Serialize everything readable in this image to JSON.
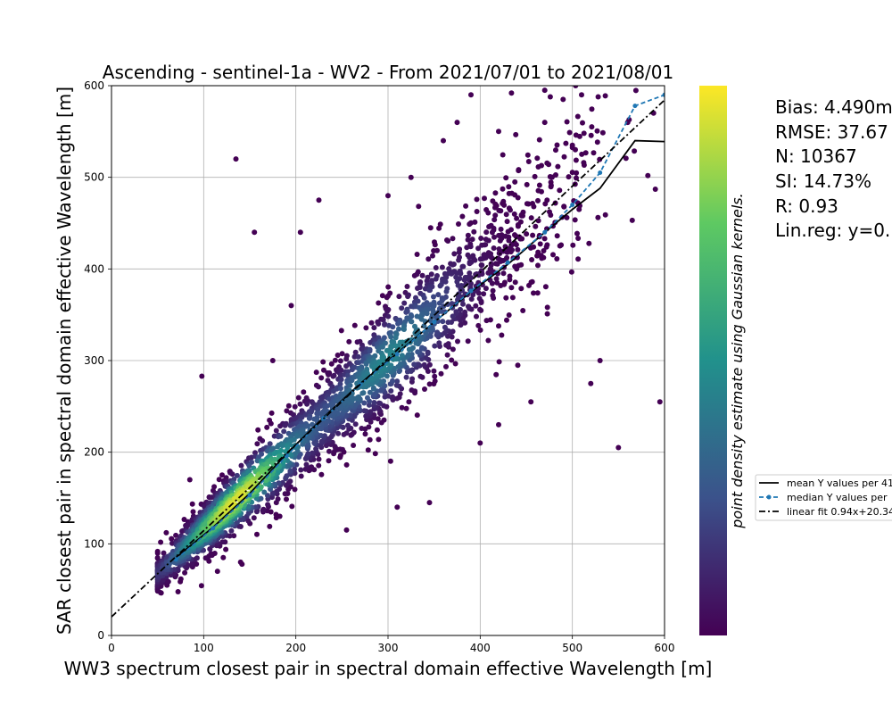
{
  "chart_data": {
    "type": "scatter",
    "title": "Ascending - sentinel-1a - WV2 - From 2021/07/01 to 2021/08/01",
    "xlabel": "WW3 spectrum closest pair in spectral domain effective Wavelength [m]",
    "ylabel": "SAR closest pair in spectral domain effective Wavelength [m]",
    "xlim": [
      0,
      600
    ],
    "ylim": [
      0,
      600
    ],
    "x_ticks": [
      "0",
      "100",
      "200",
      "300",
      "400",
      "500",
      "600"
    ],
    "y_ticks": [
      "0",
      "100",
      "200",
      "300",
      "400",
      "500",
      "600"
    ],
    "grid": true,
    "colorbar_label": "point density estimate using Gaussian kernels.",
    "colormap": [
      "#440154",
      "#3b528b",
      "#21918c",
      "#5ec962",
      "#fde725"
    ],
    "point_color_default": "#440154",
    "stats": {
      "bias": "Bias: 4.490m",
      "rmse": "RMSE: 37.67",
      "n": "N: 10367",
      "si": "SI: 14.73%",
      "r": "R: 0.93",
      "linreg": "Lin.reg: y=0."
    },
    "legend": {
      "position": "center-right",
      "entries": [
        {
          "label": "mean Y values per 41",
          "color": "#000000",
          "style": "solid"
        },
        {
          "label": "median Y values per",
          "color": "#1f77b4",
          "style": "dashed-marker"
        },
        {
          "label": "linear fit 0.94x+20.34",
          "color": "#000000",
          "style": "dashdot"
        }
      ]
    },
    "series": [
      {
        "name": "mean Y values per 41",
        "x": [
          70,
          110,
          150,
          190,
          230,
          270,
          310,
          350,
          390,
          430,
          470,
          500,
          530,
          568,
          600
        ],
        "y": [
          85,
          118,
          155,
          198,
          238,
          275,
          308,
          342,
          375,
          405,
          440,
          465,
          488,
          540,
          539
        ]
      },
      {
        "name": "median Y values per",
        "x": [
          70,
          110,
          150,
          190,
          230,
          270,
          310,
          350,
          390,
          430,
          470,
          500,
          530,
          568,
          600
        ],
        "y": [
          83,
          117,
          153,
          196,
          237,
          274,
          307,
          342,
          376,
          407,
          440,
          470,
          505,
          578,
          590
        ]
      },
      {
        "name": "linear fit 0.94x+20.34",
        "x": [
          0,
          600
        ],
        "y": [
          20.34,
          584.34
        ]
      }
    ],
    "scatter_seed": 12345,
    "scatter_count": 2600,
    "outliers": [
      [
        135,
        520
      ],
      [
        155,
        440
      ],
      [
        205,
        440
      ],
      [
        98,
        283
      ],
      [
        85,
        170
      ],
      [
        120,
        175
      ],
      [
        345,
        145
      ],
      [
        310,
        140
      ],
      [
        255,
        115
      ],
      [
        595,
        255
      ],
      [
        520,
        275
      ],
      [
        550,
        205
      ],
      [
        565,
        453
      ],
      [
        590,
        487
      ],
      [
        605,
        595
      ],
      [
        510,
        590
      ],
      [
        140,
        80
      ],
      [
        115,
        70
      ],
      [
        470,
        595
      ],
      [
        490,
        585
      ],
      [
        560,
        560
      ],
      [
        400,
        210
      ],
      [
        420,
        230
      ],
      [
        530,
        300
      ],
      [
        455,
        255
      ],
      [
        375,
        560
      ],
      [
        390,
        590
      ],
      [
        195,
        360
      ],
      [
        225,
        475
      ],
      [
        175,
        300
      ],
      [
        300,
        480
      ],
      [
        325,
        500
      ],
      [
        360,
        540
      ],
      [
        420,
        550
      ],
      [
        470,
        560
      ],
      [
        500,
        535
      ]
    ]
  }
}
